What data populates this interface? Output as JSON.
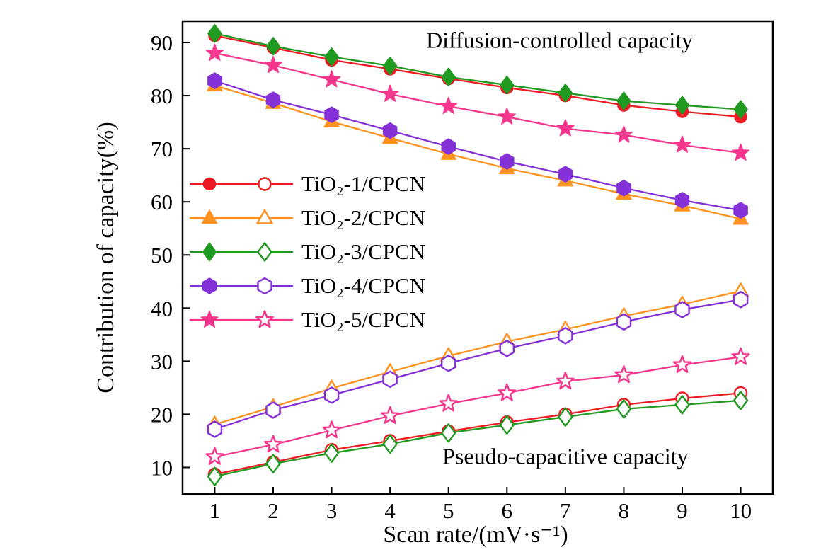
{
  "chart_data": {
    "type": "line",
    "title": "",
    "xlabel": "Scan rate/(mV·s⁻¹)",
    "ylabel": "Contribution of capacity(%)",
    "xlim": [
      0.45,
      10.55
    ],
    "ylim": [
      5,
      94
    ],
    "x": [
      1,
      2,
      3,
      4,
      5,
      6,
      7,
      8,
      9,
      10
    ],
    "xticks": [
      1,
      2,
      3,
      4,
      5,
      6,
      7,
      8,
      9,
      10
    ],
    "yticks": [
      10,
      20,
      30,
      40,
      50,
      60,
      70,
      80,
      90
    ],
    "grid": false,
    "legend_position": "center-left",
    "groups": {
      "diffusion": {
        "label": "Diffusion-controlled capacity",
        "marker_fill": "filled"
      },
      "pseudo": {
        "label": "Pseudo-capacitive capacity",
        "marker_fill": "open"
      }
    },
    "annotations": [
      {
        "id": "diffusion",
        "text": "Diffusion-controlled capacity",
        "x": 6.9,
        "y": 90.4
      },
      {
        "id": "pseudo",
        "text": "Pseudo-capacitive capacity",
        "x": 7.0,
        "y": 12.0
      }
    ],
    "series": [
      {
        "name": "TiO₂-1/CPCN",
        "color": "#ed1c24",
        "marker": "circle",
        "diffusion": [
          91.3,
          89.0,
          86.7,
          85.0,
          83.2,
          81.5,
          80.0,
          78.2,
          77.0,
          76.0
        ],
        "pseudo": [
          8.7,
          11.0,
          13.3,
          15.0,
          16.8,
          18.5,
          20.0,
          21.8,
          23.0,
          24.0
        ]
      },
      {
        "name": "TiO₂-2/CPCN",
        "color": "#ff921e",
        "marker": "triangle",
        "diffusion": [
          81.9,
          78.6,
          75.1,
          72.0,
          69.0,
          66.3,
          64.0,
          61.5,
          59.3,
          56.8
        ],
        "pseudo": [
          18.1,
          21.4,
          24.9,
          28.0,
          31.0,
          33.7,
          36.0,
          38.5,
          40.7,
          43.2
        ]
      },
      {
        "name": "TiO₂-3/CPCN",
        "color": "#219a21",
        "marker": "diamond",
        "diffusion": [
          91.7,
          89.3,
          87.3,
          85.6,
          83.5,
          82.0,
          80.5,
          79.0,
          78.2,
          77.4
        ],
        "pseudo": [
          8.3,
          10.7,
          12.7,
          14.4,
          16.5,
          18.0,
          19.5,
          21.0,
          21.8,
          22.6
        ]
      },
      {
        "name": "TiO₂-4/CPCN",
        "color": "#8431d8",
        "marker": "hexagon",
        "diffusion": [
          82.8,
          79.2,
          76.4,
          73.4,
          70.4,
          67.6,
          65.2,
          62.6,
          60.3,
          58.4
        ],
        "pseudo": [
          17.2,
          20.8,
          23.6,
          26.6,
          29.6,
          32.4,
          34.8,
          37.4,
          39.7,
          41.6
        ]
      },
      {
        "name": "TiO₂-5/CPCN",
        "color": "#f4368c",
        "marker": "star",
        "diffusion": [
          88.0,
          85.7,
          83.0,
          80.3,
          78.0,
          76.0,
          73.8,
          72.6,
          70.7,
          69.2
        ],
        "pseudo": [
          12.0,
          14.3,
          17.0,
          19.7,
          22.0,
          24.0,
          26.2,
          27.4,
          29.3,
          30.8
        ]
      }
    ]
  }
}
